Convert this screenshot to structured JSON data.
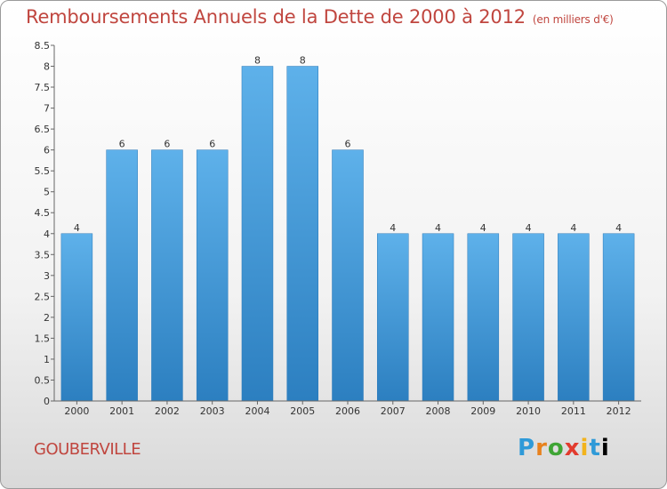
{
  "header": {
    "title": "Remboursements Annuels de la Dette de 2000 à 2012",
    "subtitle": "(en milliers d'€)"
  },
  "footer": {
    "town": "GOUBERVILLE",
    "logo_letters": [
      "P",
      "r",
      "o",
      "x",
      "i",
      "t",
      "i"
    ]
  },
  "chart_data": {
    "type": "bar",
    "title": "Remboursements Annuels de la Dette de 2000 à 2012",
    "subtitle": "(en milliers d'€)",
    "categories": [
      "2000",
      "2001",
      "2002",
      "2003",
      "2004",
      "2005",
      "2006",
      "2007",
      "2008",
      "2009",
      "2010",
      "2011",
      "2012"
    ],
    "values": [
      4,
      6,
      6,
      6,
      8,
      8,
      6,
      4,
      4,
      4,
      4,
      4,
      4
    ],
    "ylim": [
      0,
      8.5
    ],
    "yticks": [
      0,
      0.5,
      1,
      1.5,
      2,
      2.5,
      3,
      3.5,
      4,
      4.5,
      5,
      5.5,
      6,
      6.5,
      7,
      7.5,
      8,
      8.5
    ],
    "ytick_labels": [
      "0",
      "0.5",
      "1",
      "1.5",
      "2",
      "2.5",
      "3",
      "3.5",
      "4",
      "4.5",
      "5",
      "5.5",
      "6",
      "6.5",
      "7",
      "7.5",
      "8",
      "8.5"
    ],
    "grid": false,
    "bar_color": "#3f9ad9"
  }
}
